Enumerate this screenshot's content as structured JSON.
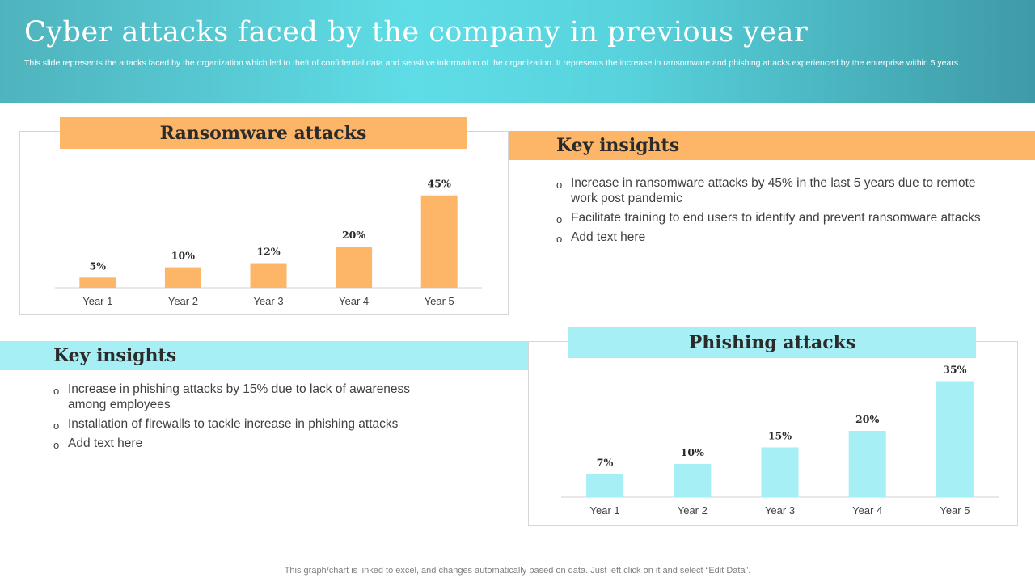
{
  "header": {
    "title": "Cyber attacks faced by the company in previous year",
    "subtitle": "This slide represents the attacks faced by the organization which led to theft of confidential data and sensitive information of the organization. It represents the increase in ransomware and phishing attacks experienced by the enterprise within 5 years."
  },
  "colors": {
    "orange": "#fdb667",
    "cyan": "#a6eff4",
    "axis": "#d0d0d0"
  },
  "ransomware_insights": {
    "heading": "Key insights",
    "items": [
      "Increase  in ransomware  attacks by 45% in the last 5 years due to remote work post pandemic",
      "Facilitate training to end users to identify and prevent ransomware attacks",
      "Add text here"
    ]
  },
  "phishing_insights": {
    "heading": "Key insights",
    "items": [
      "Increase  in phishing attacks by 15% due to lack of awareness among employees",
      "Installation  of firewalls to tackle increase in phishing attacks",
      "Add text here"
    ]
  },
  "footer": {
    "note": "This graph/chart is linked to excel,  and changes automatically based on data. Just left click on it and select “Edit Data”."
  },
  "chart_data": [
    {
      "type": "bar",
      "title": "Ransomware attacks",
      "categories": [
        "Year 1",
        "Year 2",
        "Year 3",
        "Year 4",
        "Year 5"
      ],
      "values": [
        5,
        10,
        12,
        20,
        45
      ],
      "data_labels": [
        "5%",
        "10%",
        "12%",
        "20%",
        "45%"
      ],
      "ylim": [
        0,
        50
      ],
      "grid": false,
      "legend": "none",
      "color": "#fdb667"
    },
    {
      "type": "bar",
      "title": "Phishing attacks",
      "categories": [
        "Year 1",
        "Year 2",
        "Year 3",
        "Year 4",
        "Year 5"
      ],
      "values": [
        7,
        10,
        15,
        20,
        35
      ],
      "data_labels": [
        "7%",
        "10%",
        "15%",
        "20%",
        "35%"
      ],
      "ylim": [
        0,
        40
      ],
      "grid": false,
      "legend": "none",
      "color": "#a6eff4"
    }
  ]
}
